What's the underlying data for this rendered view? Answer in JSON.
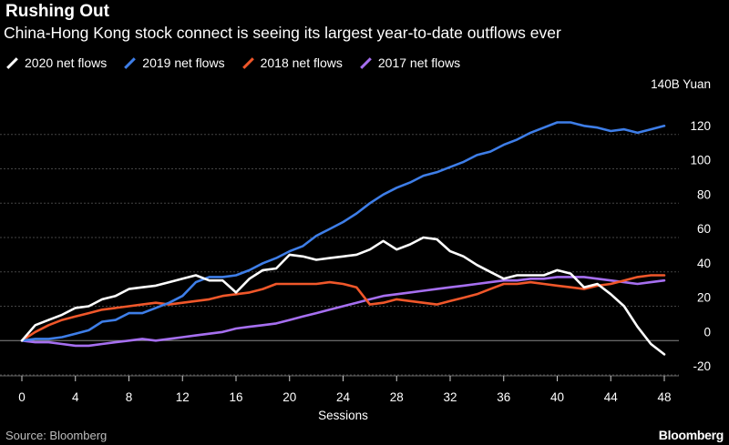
{
  "header": {
    "title": "Rushing Out",
    "subtitle": "China-Hong Kong stock connect is seeing its largest year-to-date outflows ever"
  },
  "footer": {
    "source": "Source: Bloomberg",
    "brand": "Bloomberg"
  },
  "colors": {
    "background": "#000000",
    "grid": "#444444",
    "zero_line": "#888888"
  },
  "chart_data": {
    "type": "line",
    "xlabel": "Sessions",
    "ylabel": "",
    "y_unit_label": "140B Yuan",
    "xlim": [
      0,
      48
    ],
    "ylim": [
      -20,
      140
    ],
    "x_ticks": [
      0,
      4,
      8,
      12,
      16,
      20,
      24,
      28,
      32,
      36,
      40,
      44,
      48
    ],
    "y_ticks": [
      -20,
      0,
      20,
      40,
      60,
      80,
      100,
      120
    ],
    "grid": true,
    "legend_position": "top-left",
    "series": [
      {
        "name": "2020 net flows",
        "color": "#ffffff",
        "values": [
          0,
          9,
          12,
          15,
          19,
          20,
          24,
          26,
          30,
          31,
          32,
          34,
          36,
          38,
          35,
          35,
          28,
          36,
          41,
          42,
          50,
          49,
          47,
          48,
          49,
          50,
          53,
          58,
          53,
          56,
          60,
          59,
          52,
          49,
          44,
          40,
          36,
          38,
          38,
          38,
          41,
          39,
          31,
          33,
          27,
          20,
          8,
          -2,
          -8
        ]
      },
      {
        "name": "2019 net flows",
        "color": "#3e7ee8",
        "values": [
          0,
          1,
          1,
          2,
          4,
          6,
          11,
          12,
          16,
          16,
          19,
          22,
          26,
          34,
          37,
          37,
          38,
          41,
          45,
          48,
          52,
          55,
          61,
          65,
          69,
          74,
          80,
          85,
          89,
          92,
          96,
          98,
          101,
          104,
          108,
          110,
          114,
          117,
          121,
          124,
          127,
          127,
          125,
          124,
          122,
          123,
          121,
          123,
          125
        ]
      },
      {
        "name": "2018 net flows",
        "color": "#f0572a",
        "values": [
          0,
          5,
          9,
          12,
          14,
          16,
          18,
          19,
          20,
          21,
          22,
          21,
          22,
          23,
          24,
          26,
          27,
          28,
          30,
          33,
          33,
          33,
          33,
          34,
          33,
          31,
          21,
          22,
          24,
          23,
          22,
          21,
          23,
          25,
          27,
          30,
          33,
          33,
          34,
          33,
          32,
          31,
          30,
          32,
          33,
          35,
          37,
          38,
          38
        ]
      },
      {
        "name": "2017 net flows",
        "color": "#a66ff0",
        "values": [
          0,
          -1,
          -1,
          -2,
          -3,
          -3,
          -2,
          -1,
          0,
          1,
          0,
          1,
          2,
          3,
          4,
          5,
          7,
          8,
          9,
          10,
          12,
          14,
          16,
          18,
          20,
          22,
          24,
          26,
          27,
          28,
          29,
          30,
          31,
          32,
          33,
          34,
          35,
          35,
          36,
          36,
          37,
          37,
          37,
          36,
          35,
          34,
          33,
          34,
          35
        ]
      }
    ]
  }
}
